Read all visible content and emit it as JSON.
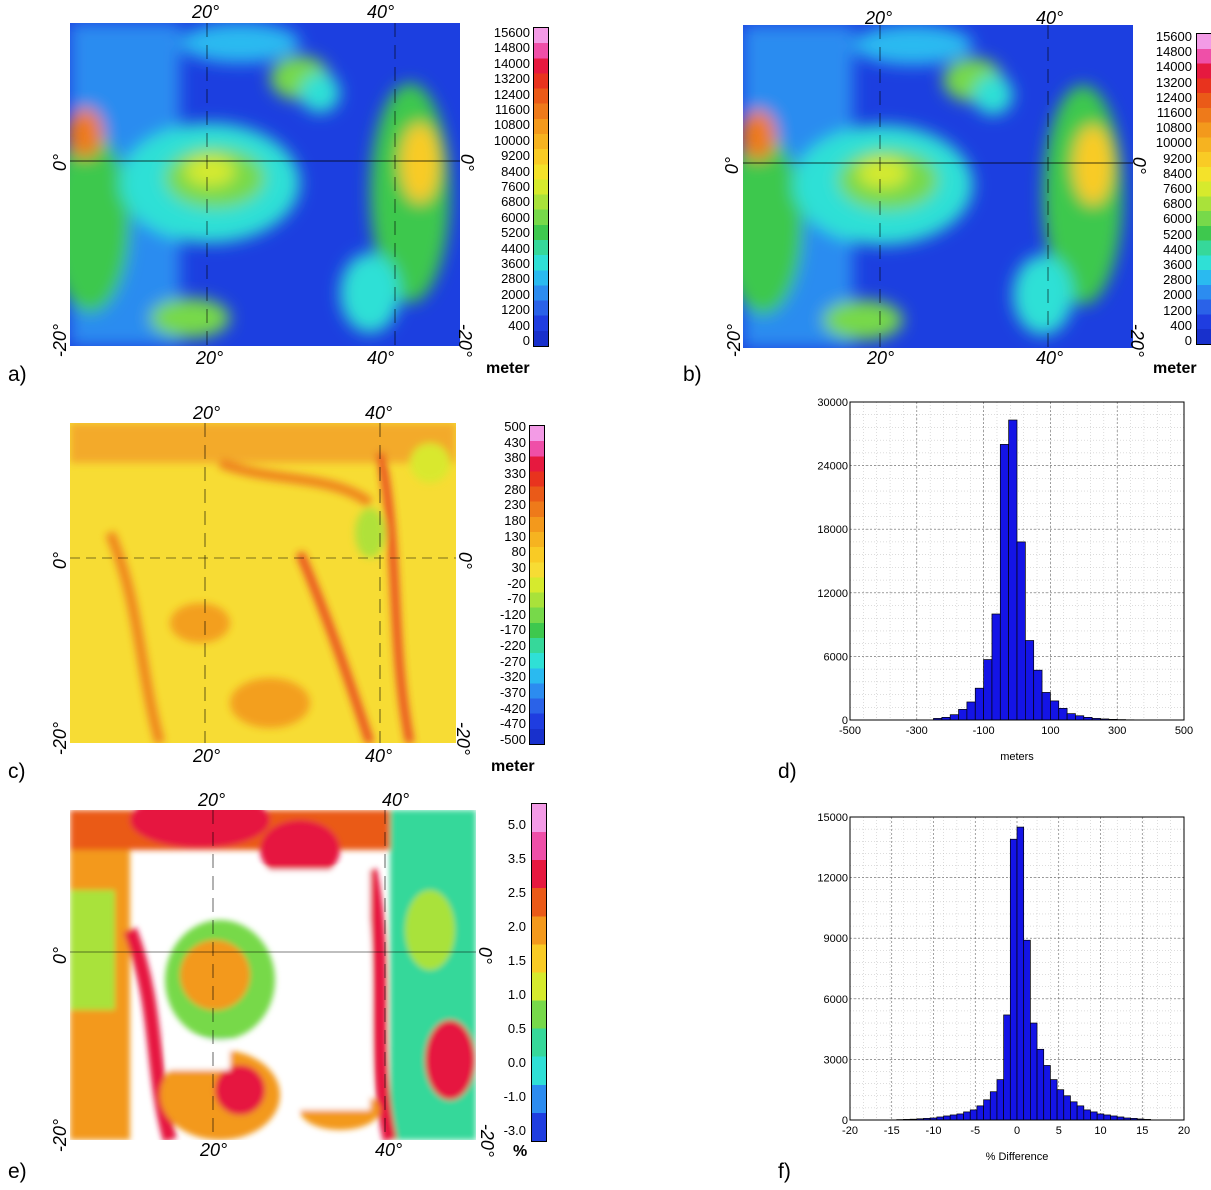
{
  "panels": {
    "a": {
      "label": "a)",
      "unit": "meter"
    },
    "b": {
      "label": "b)",
      "unit": "meter"
    },
    "c": {
      "label": "c)",
      "unit": "meter"
    },
    "d": {
      "label": "d)"
    },
    "e": {
      "label": "e)",
      "unit": "%"
    },
    "f": {
      "label": "f)"
    }
  },
  "map_ticks": {
    "lon_20": "20°",
    "lon_40": "40°",
    "lat_0": "0°",
    "lat_m20": "-20°"
  },
  "colorbars": {
    "elevation": {
      "ticks": [
        "15600",
        "14800",
        "14000",
        "13200",
        "12400",
        "11600",
        "10800",
        "10000",
        "9200",
        "8400",
        "7600",
        "6800",
        "6000",
        "5200",
        "4400",
        "3600",
        "2800",
        "2000",
        "1200",
        "400",
        "0"
      ],
      "colors": [
        "#f39be6",
        "#ef4fa8",
        "#e6193f",
        "#e8331e",
        "#ea5a18",
        "#ee7a1a",
        "#f3991c",
        "#f6b320",
        "#f9cb25",
        "#f4e22a",
        "#d6ea2d",
        "#a9e23a",
        "#77d94a",
        "#3ec84e",
        "#36d89a",
        "#2fe0d6",
        "#2abaf0",
        "#2c8cf0",
        "#2a62e8",
        "#1f3de0",
        "#1830cc"
      ]
    },
    "difference": {
      "ticks": [
        "500",
        "430",
        "380",
        "330",
        "280",
        "230",
        "180",
        "130",
        "80",
        "30",
        "-20",
        "-70",
        "-120",
        "-170",
        "-220",
        "-270",
        "-320",
        "-370",
        "-420",
        "-470",
        "-500"
      ],
      "colors": [
        "#f39be6",
        "#ef4fa8",
        "#e6193f",
        "#e8331e",
        "#ea5a18",
        "#ee7a1a",
        "#f3991c",
        "#f6b320",
        "#f9cb25",
        "#f7dc34",
        "#d6ea2d",
        "#a9e23a",
        "#77d94a",
        "#3ec84e",
        "#36d89a",
        "#2fe0d6",
        "#2abaf0",
        "#2c8cf0",
        "#2a62e8",
        "#1f3de0",
        "#1830cc"
      ]
    },
    "percent": {
      "ticks": [
        "5.0",
        "3.5",
        "2.5",
        "2.0",
        "1.5",
        "1.0",
        "0.5",
        "0.0",
        "-1.0",
        "-3.0"
      ],
      "colors": [
        "#f39be6",
        "#ef4fa8",
        "#e6193f",
        "#ea5a18",
        "#f3991c",
        "#f9cb25",
        "#d6ea2d",
        "#77d94a",
        "#36d89a",
        "#2fe0d6",
        "#2c8cf0",
        "#1f3de0"
      ]
    }
  },
  "chart_data": [
    {
      "type": "bar",
      "panel": "d",
      "title": "",
      "xlabel": "meters",
      "ylabel": "",
      "xlim": [
        -500,
        500
      ],
      "ylim": [
        0,
        30000
      ],
      "xticks": [
        "-500",
        "-300",
        "-100",
        "100",
        "300",
        "500"
      ],
      "yticks": [
        "0",
        "6000",
        "12000",
        "18000",
        "24000",
        "30000"
      ],
      "bin_width": 25,
      "bin_starts": [
        -250,
        -225,
        -200,
        -175,
        -150,
        -125,
        -100,
        -75,
        -50,
        -25,
        0,
        25,
        50,
        75,
        100,
        125,
        150,
        175,
        200,
        225,
        250,
        275,
        300,
        325
      ],
      "values": [
        150,
        250,
        500,
        1000,
        1700,
        3000,
        5700,
        10000,
        26000,
        28300,
        16800,
        7500,
        4700,
        2600,
        1800,
        1100,
        600,
        400,
        250,
        150,
        100,
        60,
        40,
        20
      ],
      "grid": true,
      "bar_color": "#1414e6"
    },
    {
      "type": "bar",
      "panel": "f",
      "title": "",
      "xlabel": "% Difference",
      "ylabel": "",
      "xlim": [
        -20,
        20
      ],
      "ylim": [
        0,
        15000
      ],
      "xticks": [
        "-20",
        "-15",
        "-10",
        "-5",
        "0",
        "5",
        "10",
        "15",
        "20"
      ],
      "yticks": [
        "0",
        "3000",
        "6000",
        "9000",
        "12000",
        "15000"
      ],
      "bin_width": 0.8,
      "bin_starts": [
        -14.4,
        -13.6,
        -12.8,
        -12.0,
        -11.2,
        -10.4,
        -9.6,
        -8.8,
        -8.0,
        -7.2,
        -6.4,
        -5.6,
        -4.8,
        -4.0,
        -3.2,
        -2.4,
        -1.6,
        -0.8,
        0.0,
        0.8,
        1.6,
        2.4,
        3.2,
        4.0,
        4.8,
        5.6,
        6.4,
        7.2,
        8.0,
        8.8,
        9.6,
        10.4,
        11.2,
        12.0,
        12.8,
        13.6,
        14.4,
        15.2
      ],
      "values": [
        20,
        30,
        40,
        60,
        80,
        100,
        150,
        200,
        250,
        300,
        400,
        500,
        700,
        1000,
        1400,
        2000,
        5200,
        13900,
        14500,
        8900,
        4800,
        3500,
        2700,
        2000,
        1500,
        1200,
        900,
        700,
        500,
        400,
        300,
        250,
        200,
        150,
        100,
        80,
        50,
        30
      ],
      "grid": true,
      "bar_color": "#1414e6"
    }
  ]
}
